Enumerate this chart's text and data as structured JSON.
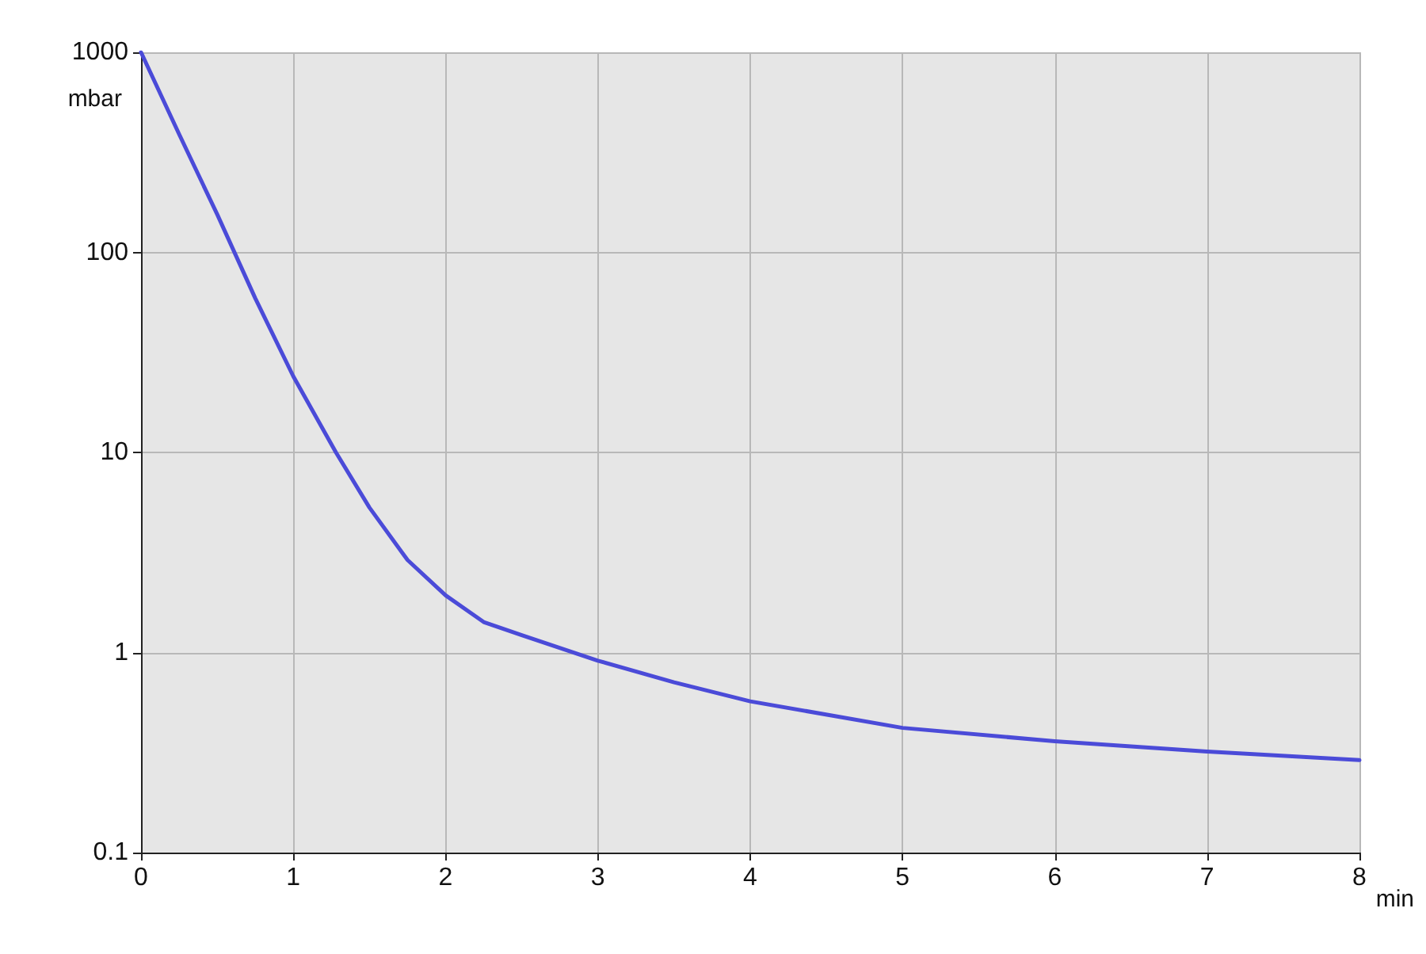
{
  "chart_data": {
    "type": "line",
    "xlabel": "min",
    "ylabel": "mbar",
    "x": [
      0,
      0.25,
      0.5,
      0.75,
      1,
      1.28,
      1.5,
      1.75,
      2,
      2.25,
      2.5,
      3,
      3.5,
      4,
      5,
      6,
      7,
      8
    ],
    "series": [
      {
        "color": "#4b4bd8",
        "values": [
          1000,
          390,
          155,
          59,
          24,
          10,
          5.3,
          2.9,
          1.93,
          1.42,
          1.22,
          0.91,
          0.71,
          0.57,
          0.42,
          0.36,
          0.32,
          0.29
        ]
      }
    ],
    "xlim": [
      0,
      8
    ],
    "xticks": [
      0,
      1,
      2,
      3,
      4,
      5,
      6,
      7,
      8
    ],
    "ylim": [
      0.1,
      1000
    ],
    "yticks": [
      0.1,
      1,
      10,
      100,
      1000
    ],
    "log": "y",
    "grid": true,
    "marker": "none",
    "line_style": "solid"
  }
}
